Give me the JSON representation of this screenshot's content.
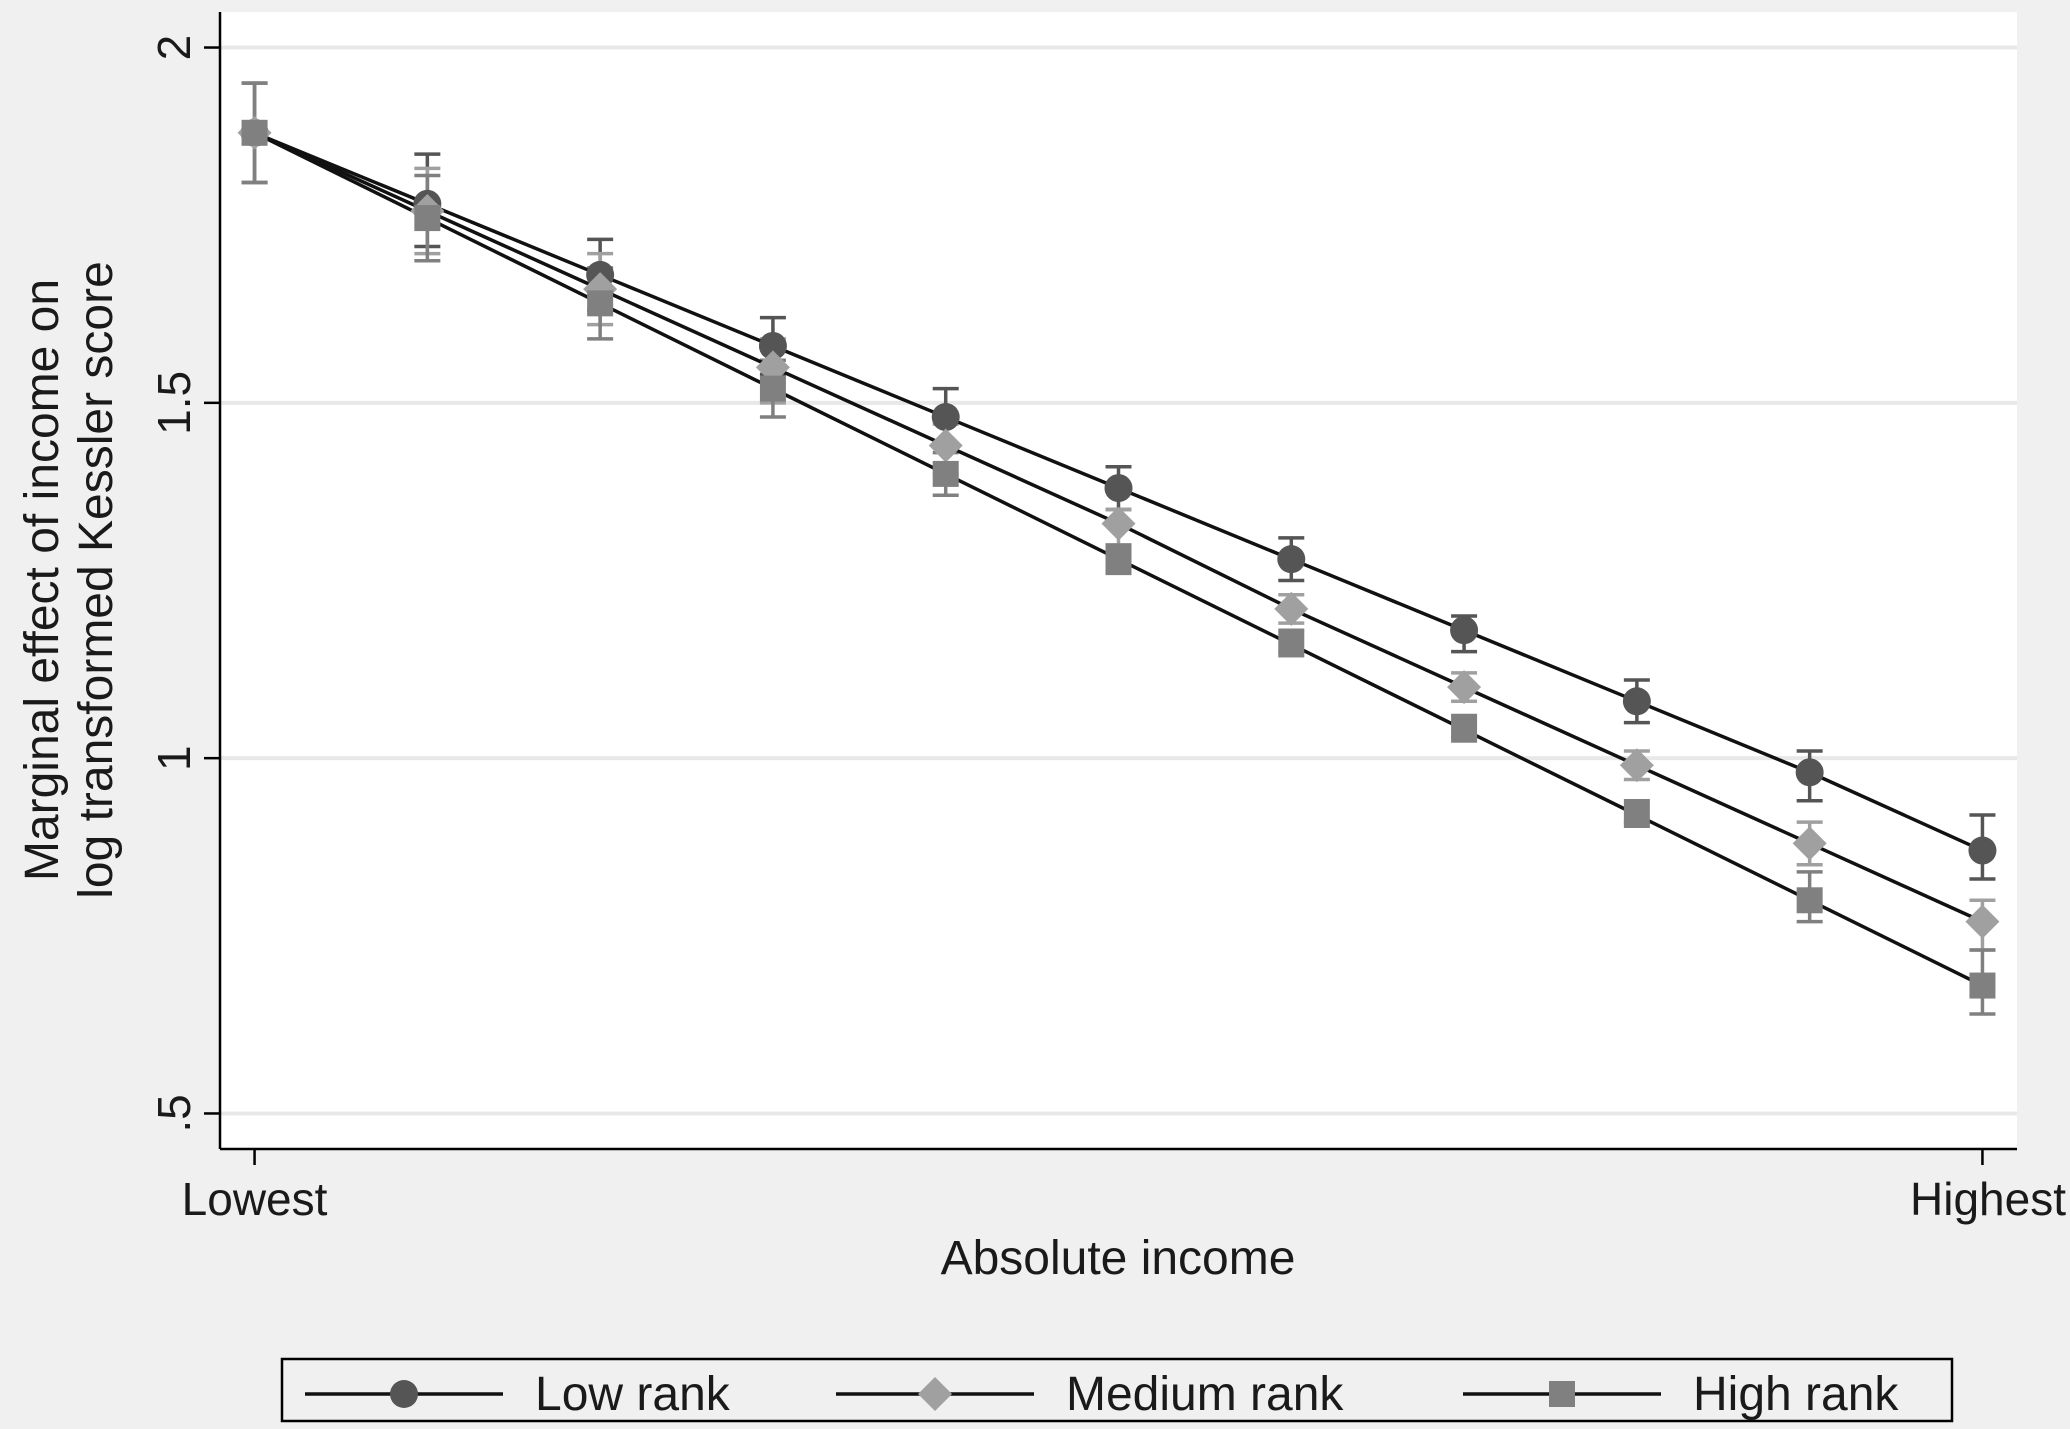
{
  "chart_data": {
    "type": "line",
    "xlabel": "Absolute income",
    "ylabel_lines": [
      "Marginal effect of income on",
      "log transformed Kessler score"
    ],
    "x_tick_labels": [
      {
        "x": 0,
        "label": "Lowest"
      },
      {
        "x": 10,
        "label": "Highest"
      }
    ],
    "y_ticks": [
      {
        "value": 2,
        "label": "2"
      },
      {
        "value": 1.5,
        "label": "1.5"
      },
      {
        "value": 1,
        "label": "1"
      },
      {
        "value": 0.5,
        "label": ".5"
      }
    ],
    "xlim": [
      -0.2,
      10.2
    ],
    "ylim": [
      0.45,
      2.05
    ],
    "grid": true,
    "legend_position": "bottom",
    "x": [
      0,
      1,
      2,
      3,
      4,
      5,
      6,
      7,
      8,
      9,
      10
    ],
    "series": [
      {
        "name": "Low rank",
        "marker": "circle",
        "color": "#555555",
        "values": [
          1.88,
          1.78,
          1.68,
          1.58,
          1.48,
          1.38,
          1.28,
          1.18,
          1.08,
          0.98,
          0.87
        ],
        "ci_low": [
          1.81,
          1.72,
          1.63,
          1.54,
          1.44,
          1.35,
          1.25,
          1.15,
          1.05,
          0.94,
          0.83
        ],
        "ci_high": [
          1.95,
          1.85,
          1.73,
          1.62,
          1.52,
          1.41,
          1.31,
          1.2,
          1.11,
          1.01,
          0.92
        ]
      },
      {
        "name": "Medium rank",
        "marker": "diamond",
        "color": "#a0a0a0",
        "values": [
          1.88,
          1.77,
          1.66,
          1.55,
          1.44,
          1.33,
          1.21,
          1.1,
          0.99,
          0.88,
          0.77
        ],
        "ci_low": [
          1.81,
          1.71,
          1.61,
          1.5,
          1.4,
          1.3,
          1.19,
          1.08,
          0.97,
          0.85,
          0.73
        ],
        "ci_high": [
          1.95,
          1.83,
          1.71,
          1.59,
          1.47,
          1.35,
          1.23,
          1.12,
          1.01,
          0.91,
          0.8
        ]
      },
      {
        "name": "High rank",
        "marker": "square",
        "color": "#808080",
        "values": [
          1.88,
          1.76,
          1.64,
          1.52,
          1.4,
          1.28,
          1.16,
          1.04,
          0.92,
          0.8,
          0.68
        ],
        "ci_low": [
          1.81,
          1.7,
          1.59,
          1.48,
          1.37,
          1.26,
          1.15,
          1.03,
          0.91,
          0.77,
          0.64
        ],
        "ci_high": [
          1.95,
          1.82,
          1.69,
          1.56,
          1.43,
          1.3,
          1.18,
          1.06,
          0.94,
          0.84,
          0.73
        ]
      }
    ]
  },
  "colors": {
    "background": "#f0f0f0",
    "plot_background": "#ffffff",
    "grid": "#e8e8e8",
    "line": "#111111"
  }
}
